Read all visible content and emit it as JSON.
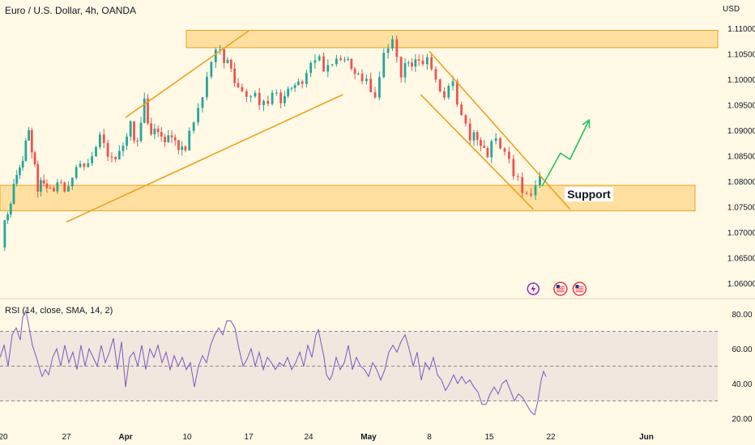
{
  "header": {
    "title": "Euro / U.S. Dollar, 4h, OANDA",
    "currency": "USD"
  },
  "colors": {
    "background": "#fff9e6",
    "up": "#26a69a",
    "down": "#ef5350",
    "zone": "#ffcc66",
    "channel": "#f0a020",
    "projection": "#22c55e",
    "rsi_line": "#7e57c2"
  },
  "chart_data": [
    {
      "type": "candlestick",
      "title": "Euro / U.S. Dollar, 4h, OANDA",
      "ylabel": "USD",
      "ylim": [
        1.0585,
        1.113
      ],
      "y_ticks": [
        1.06,
        1.065,
        1.07,
        1.075,
        1.08,
        1.085,
        1.09,
        1.095,
        1.1,
        1.105,
        1.11
      ],
      "y_tick_labels": [
        "1.06000",
        "1.06500",
        "1.07000",
        "1.07500",
        "1.08000",
        "1.08500",
        "1.09000",
        "1.09500",
        "1.10000",
        "1.10500",
        "1.11000"
      ],
      "x_ticks": [
        "2023-03-20",
        "2023-03-27",
        "2023-04-01",
        "2023-04-10",
        "2023-04-17",
        "2023-04-24",
        "2023-05-01",
        "2023-05-08",
        "2023-05-15",
        "2023-05-22",
        "2023-06-01"
      ],
      "x_tick_labels": [
        "20",
        "27",
        "Apr",
        "10",
        "17",
        "24",
        "May",
        "8",
        "15",
        "22",
        "Jun"
      ],
      "path": [
        [
          "2023-03-20",
          1.0685
        ],
        [
          "2023-03-21",
          1.0765
        ],
        [
          "2023-03-22",
          1.0815
        ],
        [
          "2023-03-23",
          1.0905
        ],
        [
          "2023-03-24",
          1.0788
        ],
        [
          "2023-03-25",
          1.0795
        ],
        [
          "2023-03-27",
          1.0785
        ],
        [
          "2023-03-28",
          1.0835
        ],
        [
          "2023-03-29",
          1.0845
        ],
        [
          "2023-03-30",
          1.0895
        ],
        [
          "2023-03-31",
          1.084
        ],
        [
          "2023-04-02",
          1.0905
        ],
        [
          "2023-04-03",
          1.088
        ],
        [
          "2023-04-04",
          1.0955
        ],
        [
          "2023-04-05",
          1.09
        ],
        [
          "2023-04-06",
          1.091
        ],
        [
          "2023-04-07",
          1.0885
        ],
        [
          "2023-04-09",
          1.0875
        ],
        [
          "2023-04-10",
          1.086
        ],
        [
          "2023-04-11",
          1.0915
        ],
        [
          "2023-04-12",
          1.096
        ],
        [
          "2023-04-13",
          1.103
        ],
        [
          "2023-04-14",
          1.106
        ],
        [
          "2023-04-16",
          1.099
        ],
        [
          "2023-04-17",
          1.0965
        ],
        [
          "2023-04-18",
          1.096
        ],
        [
          "2023-04-19",
          1.0955
        ],
        [
          "2023-04-20",
          1.097
        ],
        [
          "2023-04-21",
          1.0965
        ],
        [
          "2023-04-23",
          1.099
        ],
        [
          "2023-04-24",
          1.1
        ],
        [
          "2023-04-25",
          1.105
        ],
        [
          "2023-04-26",
          1.102
        ],
        [
          "2023-04-27",
          1.103
        ],
        [
          "2023-04-28",
          1.1045
        ],
        [
          "2023-04-30",
          1.101
        ],
        [
          "2023-05-01",
          1.099
        ],
        [
          "2023-05-02",
          1.097
        ],
        [
          "2023-05-03",
          1.105
        ],
        [
          "2023-05-04",
          1.108
        ],
        [
          "2023-05-05",
          1.1015
        ],
        [
          "2023-05-07",
          1.104
        ],
        [
          "2023-05-08",
          1.103
        ],
        [
          "2023-05-09",
          1.099
        ],
        [
          "2023-05-10",
          1.096
        ],
        [
          "2023-05-11",
          1.0998
        ],
        [
          "2023-05-12",
          1.092
        ],
        [
          "2023-05-13",
          1.089
        ],
        [
          "2023-05-15",
          1.086
        ],
        [
          "2023-05-16",
          1.088
        ],
        [
          "2023-05-17",
          1.0865
        ],
        [
          "2023-05-18",
          1.082
        ],
        [
          "2023-05-19",
          1.079
        ],
        [
          "2023-05-20",
          1.0765
        ],
        [
          "2023-05-21",
          1.081
        ]
      ],
      "zones": [
        {
          "from": 1.1062,
          "to": 1.1096
        },
        {
          "from": 1.0742,
          "to": 1.0792
        }
      ],
      "annotations": [
        {
          "text": "Support",
          "x": "2023-05-26",
          "y": 1.0767
        }
      ],
      "trend_lines": [
        {
          "points": [
            [
              "2023-03-27",
              1.072
            ],
            [
              "2023-04-28",
              1.097
            ]
          ]
        },
        {
          "points": [
            [
              "2023-04-01",
              1.0925
            ],
            [
              "2023-04-17",
              1.1095
            ]
          ]
        },
        {
          "points": [
            [
              "2023-05-07",
              1.097
            ],
            [
              "2023-05-20",
              1.0745
            ]
          ]
        },
        {
          "points": [
            [
              "2023-05-08",
              1.1055
            ],
            [
              "2023-05-24",
              1.0745
            ]
          ]
        }
      ],
      "projection": [
        [
          "2023-05-21",
          1.079
        ],
        [
          "2023-05-23",
          1.0855
        ],
        [
          "2023-05-24",
          1.0843
        ],
        [
          "2023-05-26",
          1.092
        ]
      ],
      "event_icons": [
        {
          "date": "2023-05-20",
          "kind": "lightning-icon"
        },
        {
          "date": "2023-05-23",
          "kind": "us-flag-icon"
        },
        {
          "date": "2023-05-25",
          "kind": "us-flag-icon"
        }
      ]
    },
    {
      "type": "line",
      "title": "RSI (14, close, SMA, 14, 2)",
      "ylim": [
        17,
        86
      ],
      "y_ticks": [
        20,
        40,
        60,
        80
      ],
      "y_tick_labels": [
        "20.00",
        "40.00",
        "60.00",
        "80.00"
      ],
      "bands": {
        "upper": 70,
        "middle": 50,
        "lower": 30
      },
      "series": [
        {
          "values": [
            [
              0,
              55
            ],
            [
              5,
              62
            ],
            [
              10,
              50
            ],
            [
              15,
              68
            ],
            [
              20,
              72
            ],
            [
              25,
              65
            ],
            [
              28,
              78
            ],
            [
              32,
              82
            ],
            [
              36,
              72
            ],
            [
              40,
              62
            ],
            [
              45,
              55
            ],
            [
              48,
              50
            ],
            [
              52,
              44
            ],
            [
              56,
              48
            ],
            [
              60,
              45
            ],
            [
              65,
              55
            ],
            [
              70,
              60
            ],
            [
              75,
              50
            ],
            [
              80,
              62
            ],
            [
              85,
              52
            ],
            [
              90,
              58
            ],
            [
              95,
              48
            ],
            [
              100,
              62
            ],
            [
              105,
              50
            ],
            [
              110,
              60
            ],
            [
              115,
              55
            ],
            [
              120,
              50
            ],
            [
              125,
              62
            ],
            [
              130,
              52
            ],
            [
              135,
              58
            ],
            [
              140,
              66
            ],
            [
              145,
              48
            ],
            [
              150,
              64
            ],
            [
              155,
              38
            ],
            [
              160,
              55
            ],
            [
              165,
              58
            ],
            [
              170,
              50
            ],
            [
              175,
              62
            ],
            [
              180,
              48
            ],
            [
              185,
              60
            ],
            [
              190,
              55
            ],
            [
              195,
              62
            ],
            [
              200,
              52
            ],
            [
              205,
              58
            ],
            [
              210,
              48
            ],
            [
              215,
              56
            ],
            [
              220,
              50
            ],
            [
              225,
              55
            ],
            [
              230,
              48
            ],
            [
              235,
              52
            ],
            [
              240,
              38
            ],
            [
              245,
              50
            ],
            [
              250,
              56
            ],
            [
              255,
              52
            ],
            [
              260,
              62
            ],
            [
              265,
              68
            ],
            [
              270,
              72
            ],
            [
              275,
              68
            ],
            [
              280,
              76
            ],
            [
              285,
              76
            ],
            [
              290,
              72
            ],
            [
              295,
              60
            ],
            [
              300,
              50
            ],
            [
              305,
              54
            ],
            [
              310,
              60
            ],
            [
              315,
              50
            ],
            [
              320,
              58
            ],
            [
              325,
              48
            ],
            [
              330,
              55
            ],
            [
              335,
              52
            ],
            [
              340,
              48
            ],
            [
              345,
              52
            ],
            [
              350,
              50
            ],
            [
              355,
              55
            ],
            [
              360,
              48
            ],
            [
              365,
              52
            ],
            [
              370,
              58
            ],
            [
              375,
              50
            ],
            [
              380,
              62
            ],
            [
              385,
              55
            ],
            [
              390,
              68
            ],
            [
              393,
              71
            ],
            [
              396,
              64
            ],
            [
              400,
              55
            ],
            [
              403,
              45
            ],
            [
              407,
              42
            ],
            [
              410,
              45
            ],
            [
              415,
              55
            ],
            [
              420,
              48
            ],
            [
              425,
              52
            ],
            [
              430,
              62
            ],
            [
              435,
              48
            ],
            [
              440,
              55
            ],
            [
              445,
              50
            ],
            [
              450,
              48
            ],
            [
              455,
              44
            ],
            [
              460,
              52
            ],
            [
              465,
              48
            ],
            [
              470,
              42
            ],
            [
              475,
              48
            ],
            [
              480,
              58
            ],
            [
              485,
              62
            ],
            [
              490,
              58
            ],
            [
              495,
              64
            ],
            [
              500,
              68
            ],
            [
              505,
              60
            ],
            [
              510,
              50
            ],
            [
              515,
              58
            ],
            [
              520,
              42
            ],
            [
              525,
              52
            ],
            [
              530,
              48
            ],
            [
              535,
              55
            ],
            [
              540,
              45
            ],
            [
              545,
              42
            ],
            [
              550,
              36
            ],
            [
              555,
              40
            ],
            [
              560,
              45
            ],
            [
              565,
              40
            ],
            [
              570,
              44
            ],
            [
              575,
              40
            ],
            [
              580,
              42
            ],
            [
              585,
              38
            ],
            [
              590,
              35
            ],
            [
              595,
              28
            ],
            [
              600,
              28
            ],
            [
              605,
              34
            ],
            [
              610,
              38
            ],
            [
              615,
              34
            ],
            [
              620,
              40
            ],
            [
              625,
              42
            ],
            [
              630,
              36
            ],
            [
              635,
              30
            ],
            [
              640,
              34
            ],
            [
              645,
              32
            ],
            [
              650,
              28
            ],
            [
              655,
              24
            ],
            [
              660,
              22
            ],
            [
              664,
              30
            ],
            [
              668,
              42
            ],
            [
              671,
              47
            ],
            [
              674,
              44
            ]
          ]
        }
      ]
    }
  ],
  "annotations": {
    "support_label": "Support"
  }
}
